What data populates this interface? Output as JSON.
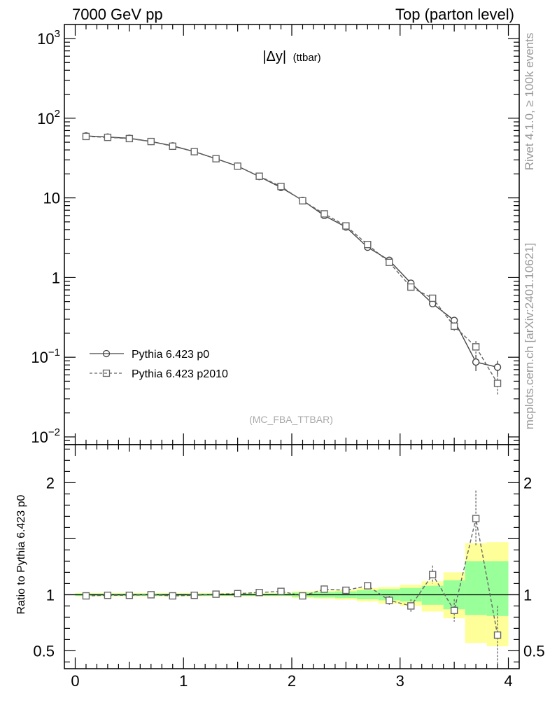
{
  "header": {
    "left": "7000 GeV pp",
    "right": "Top (parton level)"
  },
  "side_labels": {
    "rivet": "Rivet 4.1.0, ≥ 100k events",
    "mcplots": "mcplots.cern.ch [arXiv:2401.10621]"
  },
  "chart_data": [
    {
      "type": "line",
      "panel": "main",
      "title_main": "|Δy|",
      "title_sub": "(ttbar)",
      "watermark": "(MC_FBA_TTBAR)",
      "yscale": "log",
      "xlim": [
        -0.1,
        4.1
      ],
      "ylim": [
        0.008,
        1500
      ],
      "y_ticks": [
        {
          "value": 0.01,
          "base": "10",
          "exp": "−2"
        },
        {
          "value": 0.1,
          "base": "10",
          "exp": "−1"
        },
        {
          "value": 1,
          "base": "1",
          "exp": ""
        },
        {
          "value": 10,
          "base": "10",
          "exp": ""
        },
        {
          "value": 100,
          "base": "10",
          "exp": "2"
        },
        {
          "value": 1000,
          "base": "10",
          "exp": "3"
        }
      ],
      "legend_position": "bottom-left",
      "series": [
        {
          "name": "Pythia 6.423 p0",
          "marker": "circle",
          "line": "solid",
          "color": "#444444",
          "x": [
            0.1,
            0.3,
            0.5,
            0.7,
            0.9,
            1.1,
            1.3,
            1.5,
            1.7,
            1.9,
            2.1,
            2.3,
            2.5,
            2.7,
            2.9,
            3.1,
            3.3,
            3.5,
            3.7,
            3.9
          ],
          "y": [
            60,
            58,
            56,
            51,
            45,
            38,
            31,
            25,
            18.5,
            13.5,
            9.3,
            6.0,
            4.3,
            2.4,
            1.65,
            0.85,
            0.47,
            0.29,
            0.087,
            0.075
          ],
          "err": [
            0,
            0,
            0,
            0,
            0,
            0,
            0,
            0,
            0,
            0,
            0,
            0,
            0,
            0,
            0,
            0,
            0,
            0.02,
            0.02,
            0.015
          ]
        },
        {
          "name": "Pythia 6.423 p2010",
          "marker": "square",
          "line": "dashed",
          "color": "#666666",
          "x": [
            0.1,
            0.3,
            0.5,
            0.7,
            0.9,
            1.1,
            1.3,
            1.5,
            1.7,
            1.9,
            2.1,
            2.3,
            2.5,
            2.7,
            2.9,
            3.1,
            3.3,
            3.5,
            3.7,
            3.9
          ],
          "y": [
            59,
            57.5,
            55.5,
            51,
            44.5,
            38,
            31,
            25,
            18.7,
            13.9,
            9.2,
            6.3,
            4.45,
            2.6,
            1.55,
            0.76,
            0.55,
            0.245,
            0.135,
            0.047
          ],
          "err": [
            0,
            0,
            0,
            0,
            0,
            0,
            0,
            0,
            0,
            0,
            0,
            0,
            0,
            0,
            0.05,
            0.05,
            0.05,
            0.03,
            0.025,
            0.013
          ]
        }
      ]
    },
    {
      "type": "line",
      "panel": "ratio",
      "ylabel": "Ratio to Pythia 6.423 p0",
      "xlim": [
        -0.1,
        4.1
      ],
      "ylim": [
        0.34,
        2.34
      ],
      "x_ticks": [
        0,
        1,
        2,
        3,
        4
      ],
      "y_ticks": [
        0.5,
        1,
        2
      ],
      "bands": [
        {
          "x0": 0.0,
          "x1": 2.0,
          "yellow": [
            0.985,
            1.015
          ],
          "green": [
            0.99,
            1.01
          ]
        },
        {
          "x0": 2.0,
          "x1": 2.2,
          "yellow": [
            0.97,
            1.03
          ],
          "green": [
            0.98,
            1.02
          ]
        },
        {
          "x0": 2.2,
          "x1": 2.4,
          "yellow": [
            0.965,
            1.035
          ],
          "green": [
            0.975,
            1.025
          ]
        },
        {
          "x0": 2.4,
          "x1": 2.6,
          "yellow": [
            0.955,
            1.045
          ],
          "green": [
            0.97,
            1.03
          ]
        },
        {
          "x0": 2.6,
          "x1": 2.8,
          "yellow": [
            0.94,
            1.06
          ],
          "green": [
            0.96,
            1.04
          ]
        },
        {
          "x0": 2.8,
          "x1": 3.0,
          "yellow": [
            0.92,
            1.07
          ],
          "green": [
            0.95,
            1.05
          ]
        },
        {
          "x0": 3.0,
          "x1": 3.2,
          "yellow": [
            0.9,
            1.09
          ],
          "green": [
            0.94,
            1.06
          ]
        },
        {
          "x0": 3.2,
          "x1": 3.4,
          "yellow": [
            0.85,
            1.12
          ],
          "green": [
            0.91,
            1.08
          ]
        },
        {
          "x0": 3.4,
          "x1": 3.6,
          "yellow": [
            0.79,
            1.2
          ],
          "green": [
            0.87,
            1.13
          ]
        },
        {
          "x0": 3.6,
          "x1": 3.8,
          "yellow": [
            0.57,
            1.46
          ],
          "green": [
            0.82,
            1.3
          ]
        },
        {
          "x0": 3.8,
          "x1": 4.0,
          "yellow": [
            0.54,
            1.47
          ],
          "green": [
            0.81,
            1.3
          ]
        }
      ],
      "series": [
        {
          "name": "Pythia 6.423 p2010",
          "marker": "square",
          "line": "dashed",
          "color": "#666666",
          "x": [
            0.1,
            0.3,
            0.5,
            0.7,
            0.9,
            1.1,
            1.3,
            1.5,
            1.7,
            1.9,
            2.1,
            2.3,
            2.5,
            2.7,
            2.9,
            3.1,
            3.3,
            3.5,
            3.7,
            3.9
          ],
          "y": [
            0.99,
            0.995,
            0.995,
            1.0,
            0.99,
            0.995,
            1.005,
            1.01,
            1.02,
            1.03,
            0.99,
            1.05,
            1.04,
            1.08,
            0.95,
            0.9,
            1.18,
            0.86,
            1.68,
            0.64
          ],
          "err": [
            0,
            0,
            0,
            0,
            0,
            0,
            0,
            0,
            0,
            0,
            0,
            0,
            0,
            0.03,
            0.04,
            0.06,
            0.08,
            0.1,
            0.25,
            0.26
          ]
        }
      ]
    }
  ]
}
